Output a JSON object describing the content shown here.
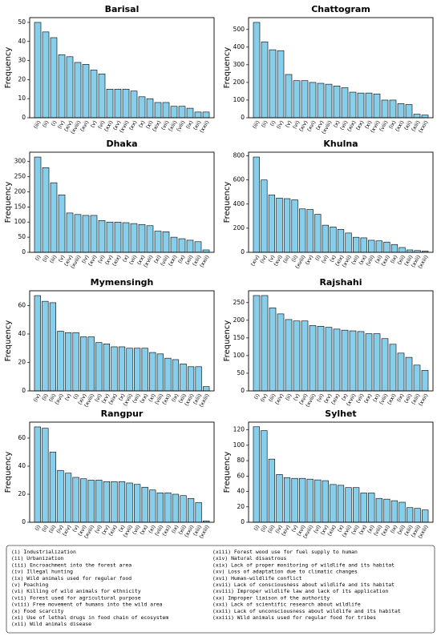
{
  "chart_data": [
    {
      "type": "bar",
      "title": "Barisal",
      "ylabel": "Frequency",
      "color": "#87ceeb",
      "categories": [
        "(iii)",
        "(ii)",
        "(i)",
        "(iv)",
        "(xiv)",
        "(xviii)",
        "(xvi)",
        "(v)",
        "(vi)",
        "(xxi)",
        "(xv)",
        "(xvii)",
        "(xx)",
        "(x)",
        "(xi)",
        "(xix)",
        "(vii)",
        "(xiii)",
        "(viii)",
        "(ix)",
        "(xii)",
        "(xxii)"
      ],
      "values": [
        50,
        45,
        42,
        33,
        32,
        29,
        28,
        25,
        23,
        15,
        15,
        15,
        14,
        11,
        10,
        8,
        8,
        6,
        6,
        5,
        3,
        3
      ],
      "ylim": [
        0,
        52.5
      ],
      "yticks": [
        0,
        10,
        20,
        30,
        40,
        50
      ]
    },
    {
      "type": "bar",
      "title": "Chattogram",
      "ylabel": "Frequency",
      "color": "#87ceeb",
      "categories": [
        "(iii)",
        "(ii)",
        "(i)",
        "(iv)",
        "(v)",
        "(vi)",
        "(xiv)",
        "(xvi)",
        "(xv)",
        "(xviii)",
        "(x)",
        "(vii)",
        "(xix)",
        "(xx)",
        "(xi)",
        "(xvii)",
        "(viii)",
        "(ix)",
        "(xxi)",
        "(xii)",
        "(xiii)",
        "(xxii)"
      ],
      "values": [
        540,
        430,
        385,
        380,
        245,
        210,
        210,
        200,
        195,
        190,
        180,
        170,
        145,
        140,
        140,
        135,
        100,
        100,
        80,
        75,
        20,
        15
      ],
      "ylim": [
        0,
        567
      ],
      "yticks": [
        0,
        100,
        200,
        300,
        400,
        500
      ]
    },
    {
      "type": "bar",
      "title": "Dhaka",
      "ylabel": "Frequency",
      "color": "#87ceeb",
      "categories": [
        "(i)",
        "(ii)",
        "(iii)",
        "(v)",
        "(xiv)",
        "(xviii)",
        "(iv)",
        "(xvi)",
        "(vi)",
        "(xv)",
        "(xix)",
        "(x)",
        "(vii)",
        "(xx)",
        "(xvii)",
        "(xi)",
        "(viii)",
        "(xxi)",
        "(ix)",
        "(xii)",
        "(xiii)",
        "(xxii)"
      ],
      "values": [
        315,
        280,
        230,
        190,
        130,
        125,
        122,
        122,
        105,
        100,
        100,
        98,
        95,
        92,
        88,
        70,
        68,
        50,
        45,
        40,
        35,
        8
      ],
      "ylim": [
        0,
        331
      ],
      "yticks": [
        0,
        50,
        100,
        150,
        200,
        250,
        300
      ]
    },
    {
      "type": "bar",
      "title": "Khulna",
      "ylabel": "Frequency",
      "color": "#87ceeb",
      "categories": [
        "(xiv)",
        "(iv)",
        "(v)",
        "(xvi)",
        "(iii)",
        "(ii)",
        "(xviii)",
        "(xv)",
        "(i)",
        "(vi)",
        "(x)",
        "(xix)",
        "(xvii)",
        "(vii)",
        "(xx)",
        "(viii)",
        "(xi)",
        "(xxi)",
        "(ix)",
        "(xii)",
        "(xiii)",
        "(xxii)",
        "(xxiii)"
      ],
      "values": [
        790,
        600,
        475,
        450,
        445,
        435,
        360,
        355,
        315,
        225,
        210,
        190,
        160,
        125,
        120,
        100,
        95,
        85,
        65,
        40,
        20,
        15,
        10
      ],
      "ylim": [
        0,
        830
      ],
      "yticks": [
        0,
        200,
        400,
        600,
        800
      ]
    },
    {
      "type": "bar",
      "title": "Mymensingh",
      "ylabel": "Frequency",
      "color": "#87ceeb",
      "categories": [
        "(iv)",
        "(ii)",
        "(iii)",
        "(xvi)",
        "(v)",
        "(i)",
        "(xiv)",
        "(xviii)",
        "(vi)",
        "(xv)",
        "(xix)",
        "(x)",
        "(xvii)",
        "(vii)",
        "(xx)",
        "(xi)",
        "(viii)",
        "(xxi)",
        "(ix)",
        "(xii)",
        "(xxii)",
        "(xiii)",
        "(xxiii)"
      ],
      "values": [
        67,
        63,
        62,
        42,
        41,
        41,
        38,
        38,
        34,
        33,
        31,
        31,
        30,
        30,
        30,
        27,
        26,
        23,
        22,
        19,
        17,
        17,
        3
      ],
      "ylim": [
        0,
        70.4
      ],
      "yticks": [
        0,
        20,
        40,
        60
      ]
    },
    {
      "type": "bar",
      "title": "Rajshahi",
      "ylabel": "Frequency",
      "color": "#87ceeb",
      "categories": [
        "(i)",
        "(iv)",
        "(iii)",
        "(xiv)",
        "(ii)",
        "(v)",
        "(xvi)",
        "(xviii)",
        "(vi)",
        "(xv)",
        "(xix)",
        "(x)",
        "(xvii)",
        "(vii)",
        "(xx)",
        "(xi)",
        "(viii)",
        "(xxi)",
        "(ix)",
        "(xii)",
        "(xiii)",
        "(xxii)"
      ],
      "values": [
        270,
        270,
        235,
        218,
        202,
        198,
        198,
        185,
        183,
        180,
        175,
        172,
        170,
        168,
        162,
        162,
        148,
        132,
        107,
        95,
        73,
        58
      ],
      "ylim": [
        0,
        283.5
      ],
      "yticks": [
        0,
        50,
        100,
        150,
        200,
        250
      ]
    },
    {
      "type": "bar",
      "title": "Rangpur",
      "ylabel": "Frequency",
      "color": "#87ceeb",
      "categories": [
        "(i)",
        "(ii)",
        "(iii)",
        "(iv)",
        "(xiv)",
        "(v)",
        "(xvi)",
        "(xviii)",
        "(vi)",
        "(xv)",
        "(xix)",
        "(x)",
        "(xvii)",
        "(vii)",
        "(xx)",
        "(xi)",
        "(viii)",
        "(xxi)",
        "(ix)",
        "(xii)",
        "(xxii)",
        "(xiii)",
        "(xxiii)"
      ],
      "values": [
        68,
        67,
        50,
        37,
        35,
        32,
        31,
        30,
        30,
        29,
        29,
        29,
        28,
        27,
        25,
        23,
        21,
        21,
        20,
        19,
        17,
        14,
        1
      ],
      "ylim": [
        0,
        71.4
      ],
      "yticks": [
        0,
        20,
        40,
        60
      ]
    },
    {
      "type": "bar",
      "title": "Sylhet",
      "ylabel": "Frequency",
      "color": "#87ceeb",
      "categories": [
        "(i)",
        "(ii)",
        "(iii)",
        "(iv)",
        "(xiv)",
        "(v)",
        "(xvi)",
        "(xviii)",
        "(vi)",
        "(xv)",
        "(xix)",
        "(x)",
        "(xvii)",
        "(vii)",
        "(xx)",
        "(xi)",
        "(viii)",
        "(xxi)",
        "(ix)",
        "(xii)",
        "(xiii)",
        "(xxii)",
        "(xxiii)"
      ],
      "values": [
        124,
        119,
        82,
        62,
        58,
        57,
        57,
        56,
        55,
        54,
        49,
        48,
        45,
        45,
        38,
        38,
        31,
        30,
        28,
        26,
        19,
        18,
        16
      ],
      "ylim": [
        0,
        130
      ],
      "yticks": [
        0,
        20,
        40,
        60,
        80,
        100,
        120
      ]
    }
  ],
  "legend_notes": {
    "left": [
      "(i) Industrialization",
      "(ii) Urbanization",
      "(iii) Encroachment into the forest area",
      "(iv) Illegal hunting",
      "(ix) Wild animals used for regular food",
      "(v) Poaching",
      "(vi) Killing of wild animals for ethnicity",
      "(vii) Forest used for agricultural purpose",
      "(viii) Free movement of humans into the wild area",
      "(x) Food scarcity",
      "(xi) Use of lethal drugs in food chain of ecosystem",
      "(xii) Wild animals disease"
    ],
    "right": [
      "(xiii) Forest wood use for fuel supply to human",
      "(xiv) Natural disastrous",
      "(xix) Lack of proper monitoring of wildlife and its habitat",
      "(xv) Loss of adaptation due to climatic changes",
      "(xvi) Human-wildlife conflict",
      "(xvii) Lack of consciousness about wildlife and its habitat",
      "(xviii) Improper wildlife law and lack of its application",
      "(xx) Improper liaison of the authority",
      "(xxi) Lack of scientific research about wildlife",
      "(xxii) Lack of unconsciousness about wildlife and its habitat",
      "(xxiii) Wild animals used for regular food for tribes"
    ]
  }
}
